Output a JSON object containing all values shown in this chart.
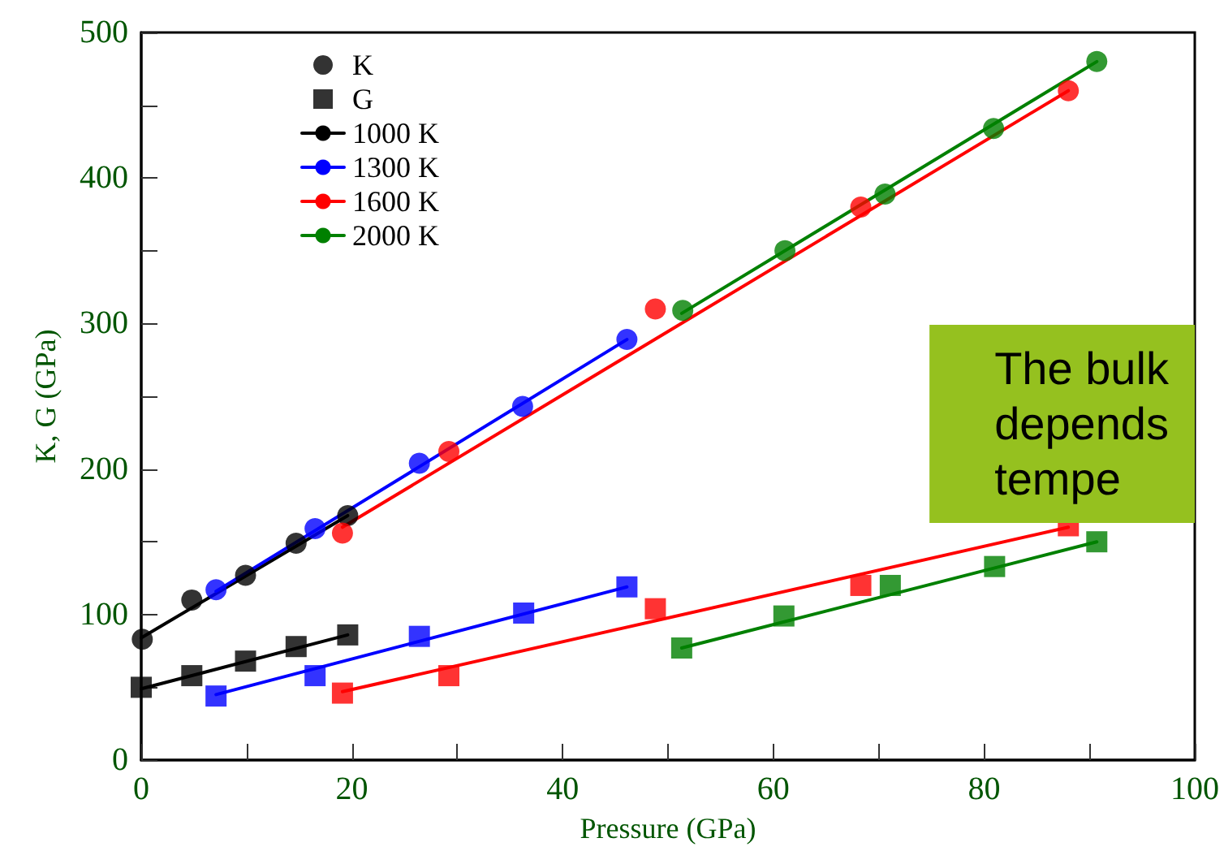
{
  "chart_data": {
    "type": "scatter",
    "xlabel": "Pressure (GPa)",
    "ylabel": "K, G (GPa)",
    "xlim": [
      0,
      100
    ],
    "ylim": [
      0,
      500
    ],
    "xticks": [
      0,
      {
        "value": 10,
        "label": null
      },
      20,
      {
        "value": 30,
        "label": null
      },
      40,
      {
        "value": 50,
        "label": null
      },
      60,
      {
        "value": 70,
        "label": null
      },
      80,
      {
        "value": 90,
        "label": null
      },
      100
    ],
    "yticks": [
      0,
      {
        "value": 50,
        "label": null
      },
      100,
      {
        "value": 150,
        "label": null
      },
      200,
      {
        "value": 250,
        "label": null
      },
      300,
      {
        "value": 350,
        "label": null
      },
      400,
      {
        "value": 450,
        "label": null
      },
      500
    ],
    "grid": false,
    "legend": "top left",
    "annotations": [
      "The bulk\ndepends\ntempe"
    ],
    "series": [
      {
        "name": "K",
        "marker": "circle",
        "color": "#000000",
        "x": [
          0.1,
          4.8,
          9.9,
          14.7,
          19.6
        ],
        "values": [
          83,
          110,
          127,
          149,
          168
        ]
      },
      {
        "name": "G",
        "marker": "square",
        "color": "#000000",
        "x": [
          0,
          4.8,
          9.9,
          14.7,
          19.6
        ],
        "values": [
          50,
          58,
          68,
          78,
          86
        ]
      },
      {
        "marker": "circle",
        "color": "#0000ff",
        "x": [
          7.1,
          16.5,
          26.4,
          36.2,
          46.1
        ],
        "values": [
          117,
          159,
          204,
          243,
          289
        ]
      },
      {
        "marker": "square",
        "color": "#0000ff",
        "x": [
          7.1,
          16.5,
          26.4,
          36.3,
          46.1
        ],
        "values": [
          44,
          58,
          85,
          101,
          119
        ]
      },
      {
        "marker": "circle",
        "color": "#ff0000",
        "x": [
          19.1,
          29.2,
          48.8,
          68.3,
          88
        ],
        "values": [
          156,
          212,
          310,
          380,
          460
        ]
      },
      {
        "marker": "square",
        "color": "#ff0000",
        "x": [
          19.1,
          29.2,
          48.8,
          68.3,
          88
        ],
        "values": [
          46,
          58,
          104,
          120,
          161
        ]
      },
      {
        "marker": "circle",
        "color": "#008000",
        "x": [
          51.4,
          61.1,
          70.6,
          80.9,
          90.7
        ],
        "values": [
          309,
          350,
          389,
          434,
          480
        ]
      },
      {
        "marker": "square",
        "color": "#008000",
        "x": [
          51.3,
          61,
          71.1,
          81,
          90.7
        ],
        "values": [
          77,
          99,
          120,
          133,
          150
        ]
      },
      {
        "name": "1000 K",
        "type": "line",
        "marker": "none",
        "color": "#000000",
        "x": [
          0,
          19.6
        ],
        "values": [
          84,
          168
        ]
      },
      {
        "name": "1300 K",
        "type": "line",
        "marker": "none",
        "color": "#0000ff",
        "x": [
          7.1,
          46.1
        ],
        "values": [
          116,
          289
        ]
      },
      {
        "name": "1600 K",
        "type": "line",
        "marker": "none",
        "color": "#ff0000",
        "x": [
          19.1,
          88
        ],
        "values": [
          160,
          460
        ]
      },
      {
        "name": "2000 K",
        "type": "line",
        "marker": "none",
        "color": "#008000",
        "x": [
          51.3,
          90.7
        ],
        "values": [
          307,
          480
        ]
      },
      {
        "type": "line",
        "marker": "none",
        "color": "#000000",
        "x": [
          0,
          19.6
        ],
        "values": [
          49,
          86
        ]
      },
      {
        "type": "line",
        "marker": "none",
        "color": "#0000ff",
        "x": [
          7.1,
          46.1
        ],
        "values": [
          45,
          119
        ]
      },
      {
        "type": "line",
        "marker": "none",
        "color": "#ff0000",
        "x": [
          19.1,
          88
        ],
        "values": [
          47,
          160
        ]
      },
      {
        "type": "line",
        "marker": "none",
        "color": "#008000",
        "x": [
          51.3,
          90.7
        ],
        "values": [
          77,
          150
        ]
      }
    ]
  }
}
